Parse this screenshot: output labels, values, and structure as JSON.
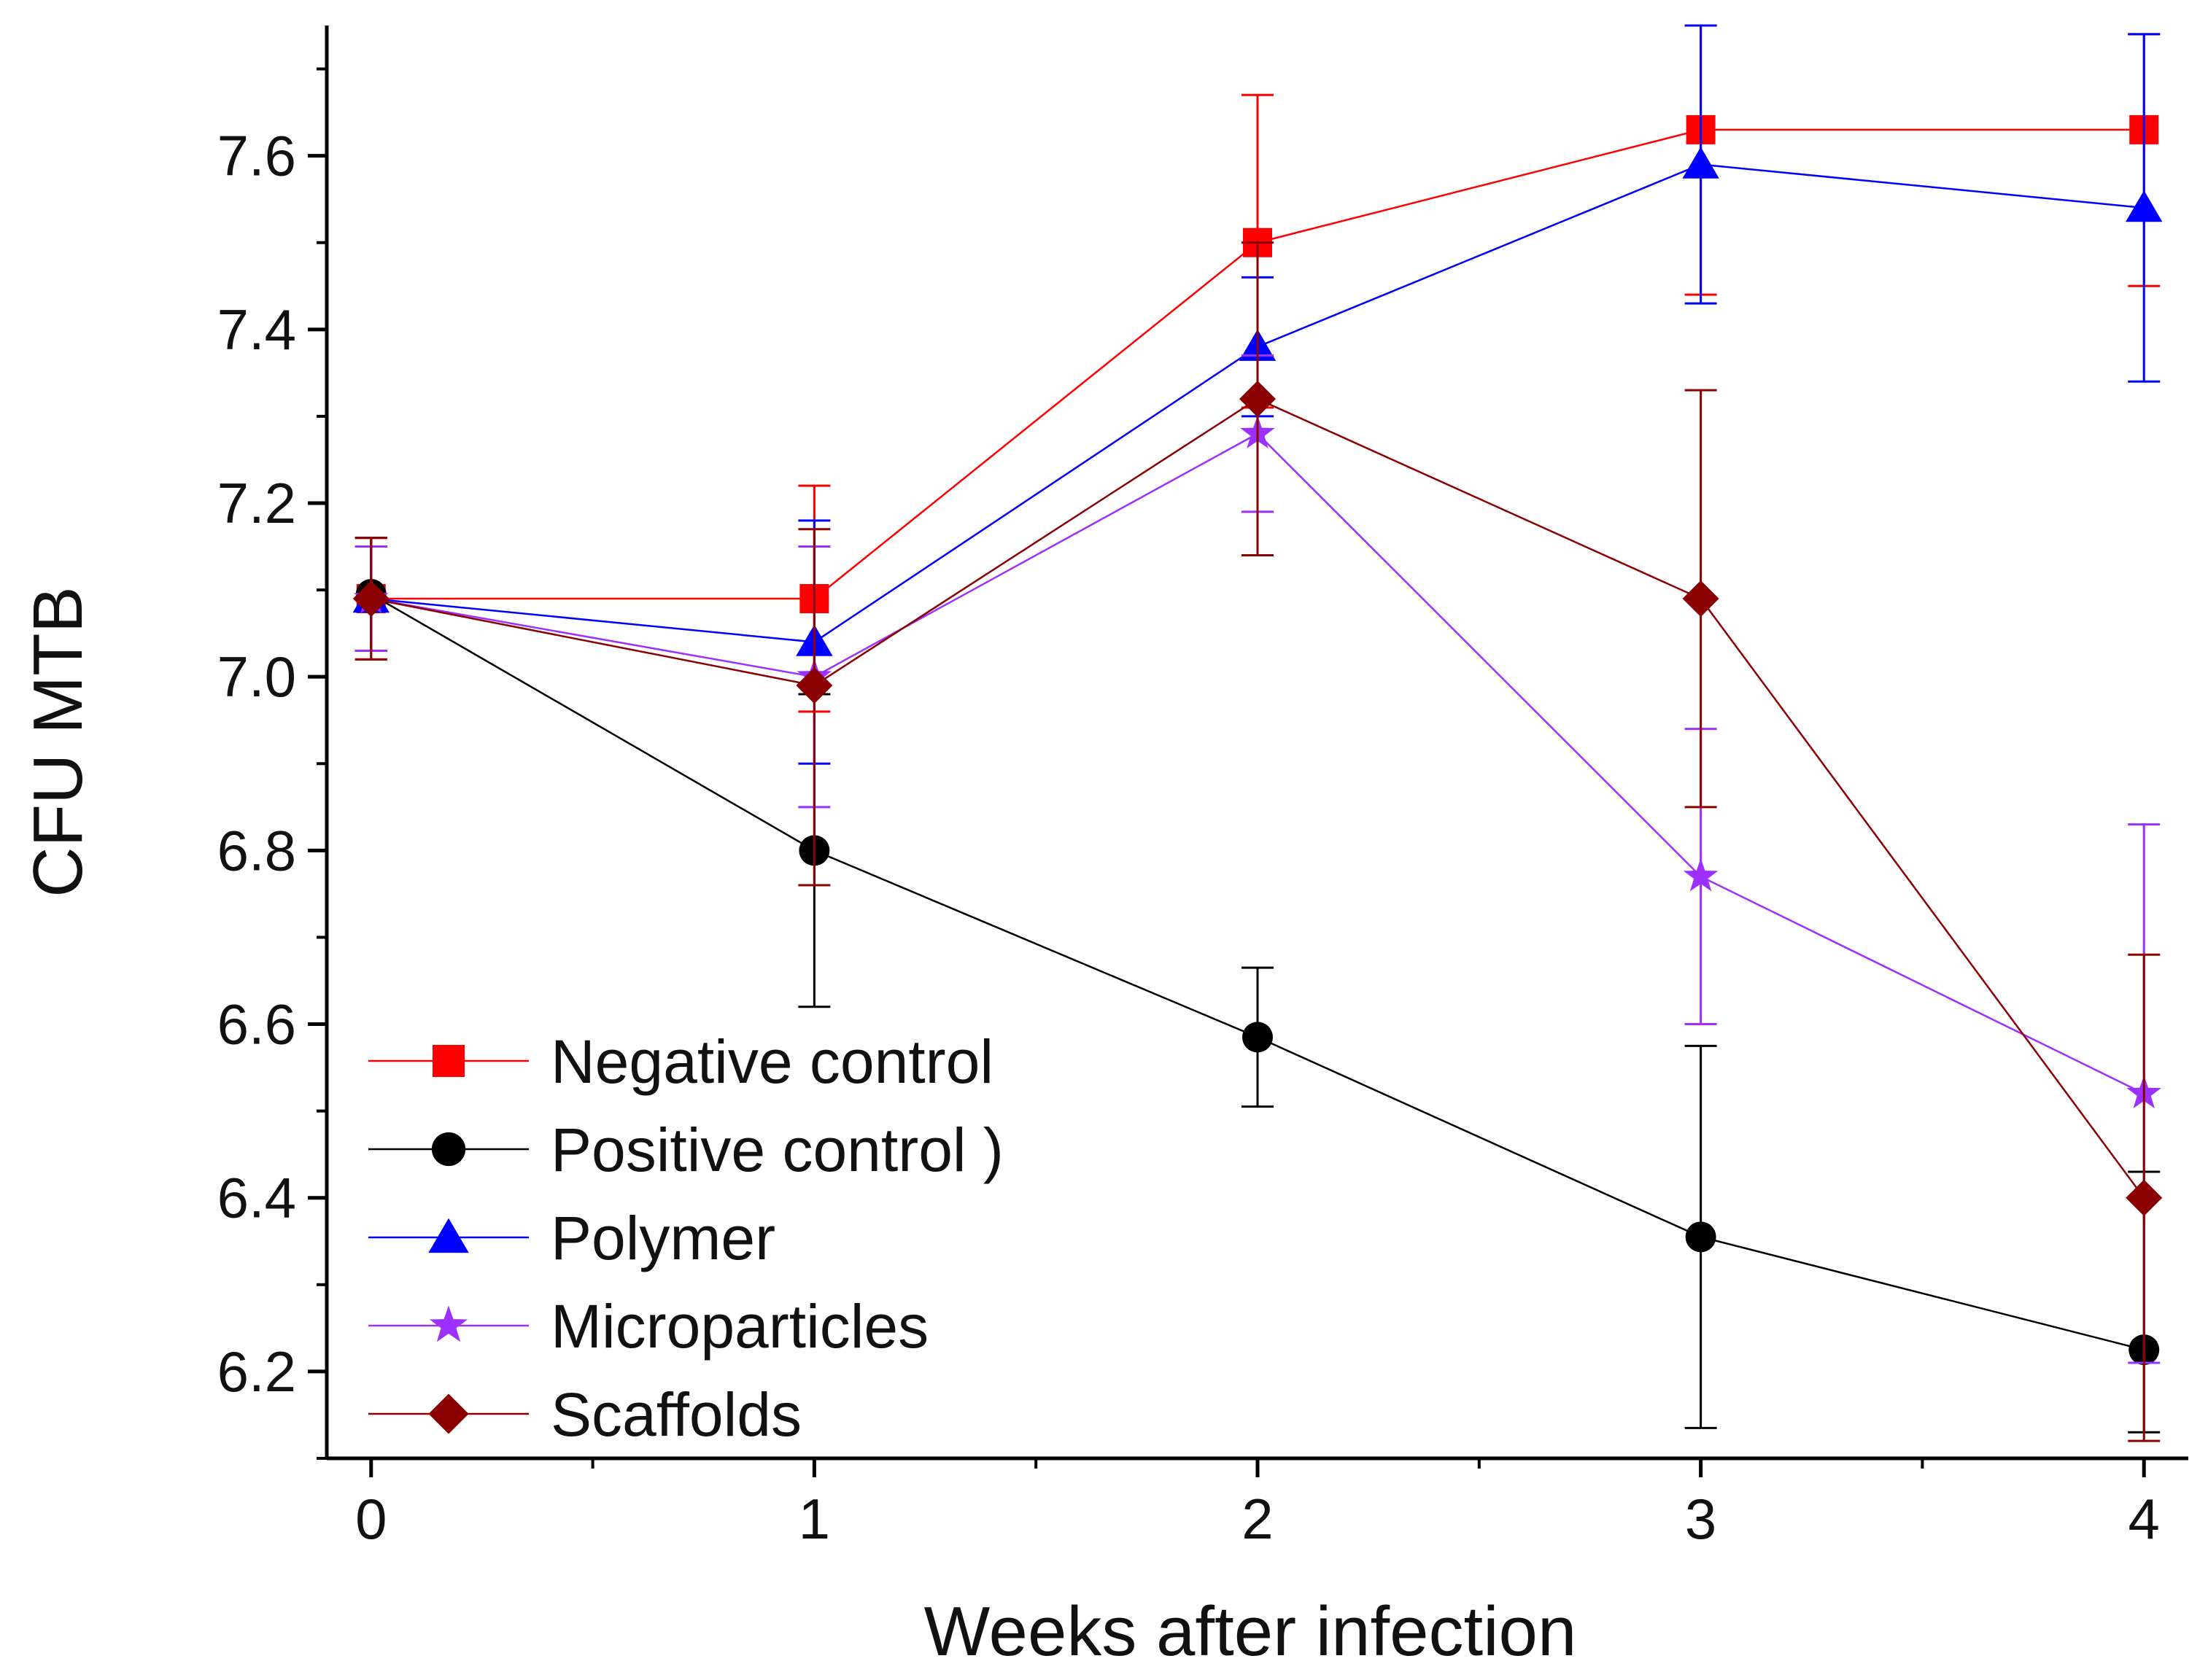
{
  "chart_data": {
    "type": "line",
    "title": "",
    "xlabel": "Weeks after infection",
    "ylabel": "CFU MTB",
    "x": [
      0,
      1,
      2,
      3,
      4
    ],
    "xlim": [
      -0.1,
      4.1
    ],
    "ylim": [
      6.1,
      7.75
    ],
    "xticks": [
      0,
      1,
      2,
      3,
      4
    ],
    "xtick_labels": [
      "0",
      "1",
      "2",
      "3",
      "4"
    ],
    "xminor": [
      0.5,
      1.5,
      2.5,
      3.5
    ],
    "yticks": [
      6.2,
      6.4,
      6.6,
      6.8,
      7.0,
      7.2,
      7.4,
      7.6
    ],
    "ytick_labels": [
      "6.2",
      "6.4",
      "6.6",
      "6.8",
      "7.0",
      "7.2",
      "7.4",
      "7.6"
    ],
    "yminor": [
      6.1,
      6.3,
      6.5,
      6.7,
      6.9,
      7.1,
      7.3,
      7.5,
      7.7
    ],
    "grid": false,
    "legend_position": "bottom-left",
    "series": [
      {
        "name": "Negative control",
        "color": "#ff0000",
        "marker": "square",
        "values": [
          7.09,
          7.09,
          7.5,
          7.63,
          7.63
        ],
        "err_upper": [
          7.16,
          7.22,
          7.67,
          7.75,
          7.74
        ],
        "err_lower": [
          7.02,
          6.96,
          7.31,
          7.44,
          7.45
        ]
      },
      {
        "name": "Positive control )",
        "color": "#000000",
        "marker": "circle",
        "values": [
          7.095,
          6.8,
          6.585,
          6.355,
          6.225
        ],
        "err_upper": [
          7.16,
          6.98,
          6.665,
          6.575,
          6.43
        ],
        "err_lower": [
          7.03,
          6.62,
          6.505,
          6.135,
          6.13
        ]
      },
      {
        "name": "Polymer",
        "color": "#0000ff",
        "marker": "triangle",
        "values": [
          7.09,
          7.04,
          7.38,
          7.59,
          7.54
        ],
        "err_upper": [
          7.15,
          7.18,
          7.46,
          7.75,
          7.74
        ],
        "err_lower": [
          7.03,
          6.9,
          7.3,
          7.43,
          7.34
        ]
      },
      {
        "name": "Microparticles",
        "color": "#9b30ff",
        "marker": "star",
        "values": [
          7.09,
          7.0,
          7.28,
          6.77,
          6.52
        ],
        "err_upper": [
          7.15,
          7.15,
          7.37,
          6.94,
          6.83
        ],
        "err_lower": [
          7.03,
          6.85,
          7.19,
          6.6,
          6.21
        ]
      },
      {
        "name": "Scaffolds",
        "color": "#8b0000",
        "marker": "diamond",
        "values": [
          7.09,
          6.99,
          7.32,
          7.09,
          6.4
        ],
        "err_upper": [
          7.16,
          7.17,
          7.5,
          7.33,
          6.68
        ],
        "err_lower": [
          7.02,
          6.76,
          7.14,
          6.85,
          6.12
        ]
      }
    ]
  }
}
